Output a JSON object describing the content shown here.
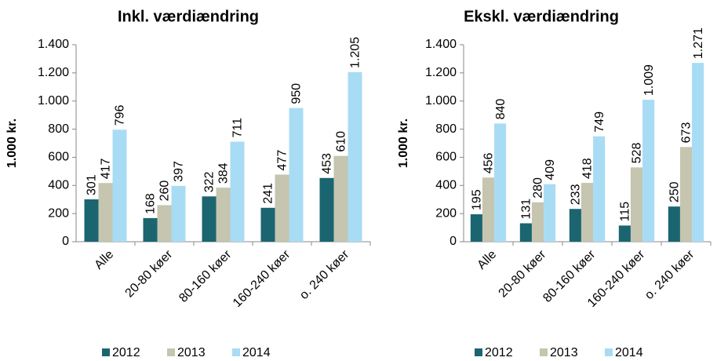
{
  "chart_data": [
    {
      "type": "bar",
      "title": "Inkl. værdiændring",
      "y_label": "1.000 kr.",
      "categories": [
        "Alle",
        "20-80 køer",
        "80-160 køer",
        "160-240 køer",
        "o. 240 køer"
      ],
      "series": [
        {
          "name": "2012",
          "color": "#1b6571",
          "values": [
            301,
            168,
            322,
            241,
            453
          ],
          "value_labels": [
            "301",
            "168",
            "322",
            "241",
            "453"
          ]
        },
        {
          "name": "2013",
          "color": "#c5c5b0",
          "values": [
            417,
            260,
            384,
            477,
            610
          ],
          "value_labels": [
            "417",
            "260",
            "384",
            "477",
            "610"
          ]
        },
        {
          "name": "2014",
          "color": "#a8dcf4",
          "values": [
            796,
            397,
            711,
            950,
            1205
          ],
          "value_labels": [
            "796",
            "397",
            "711",
            "950",
            "1.205"
          ]
        }
      ],
      "ylim": [
        0,
        1400
      ],
      "yticks": [
        0,
        200,
        400,
        600,
        800,
        {
          "value": 1000,
          "label": "1.000"
        },
        {
          "value": 1200,
          "label": "1.200"
        },
        {
          "value": 1400,
          "label": "1.400"
        }
      ],
      "grid": false,
      "legend": "bottom"
    },
    {
      "type": "bar",
      "title": "Ekskl. værdiændring",
      "y_label": "1.000 kr.",
      "categories": [
        "Alle",
        "20-80 køer",
        "80-160 køer",
        "160-240 køer",
        "o. 240 køer"
      ],
      "series": [
        {
          "name": "2012",
          "color": "#1b6571",
          "values": [
            195,
            131,
            233,
            115,
            250
          ],
          "value_labels": [
            "195",
            "131",
            "233",
            "115",
            "250"
          ]
        },
        {
          "name": "2013",
          "color": "#c5c5b0",
          "values": [
            456,
            280,
            418,
            528,
            673
          ],
          "value_labels": [
            "456",
            "280",
            "418",
            "528",
            "673"
          ]
        },
        {
          "name": "2014",
          "color": "#a8dcf4",
          "values": [
            840,
            409,
            749,
            1009,
            1271
          ],
          "value_labels": [
            "840",
            "409",
            "749",
            "1.009",
            "1.271"
          ]
        }
      ],
      "ylim": [
        0,
        1400
      ],
      "yticks": [
        0,
        200,
        400,
        600,
        800,
        {
          "value": 1000,
          "label": "1.000"
        },
        {
          "value": 1200,
          "label": "1.200"
        },
        {
          "value": 1400,
          "label": "1.400"
        }
      ],
      "grid": false,
      "legend": "bottom"
    }
  ]
}
